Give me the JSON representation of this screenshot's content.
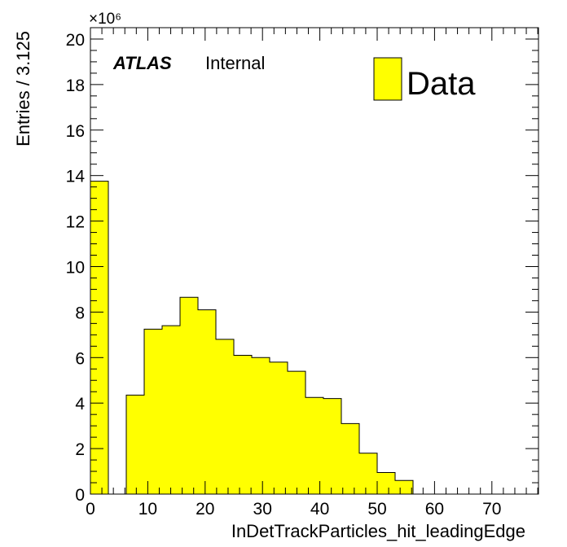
{
  "chart_data": {
    "type": "bar",
    "xlabel": "InDetTrackParticles_hit_leadingEdge",
    "ylabel": "Entries / 3.125",
    "y_multiplier": "×10⁶",
    "xlim": [
      0,
      78.125
    ],
    "ylim": [
      0,
      20.5
    ],
    "bin_width": 3.125,
    "x_ticks": [
      0,
      10,
      20,
      30,
      40,
      50,
      60,
      70
    ],
    "y_ticks": [
      0,
      2,
      4,
      6,
      8,
      10,
      12,
      14,
      16,
      18,
      20
    ],
    "bins": [
      {
        "x_low": 0,
        "x_high": 3.125,
        "value": 13.75
      },
      {
        "x_low": 3.125,
        "x_high": 6.25,
        "value": 0
      },
      {
        "x_low": 6.25,
        "x_high": 9.375,
        "value": 4.35
      },
      {
        "x_low": 9.375,
        "x_high": 12.5,
        "value": 7.25
      },
      {
        "x_low": 12.5,
        "x_high": 15.625,
        "value": 7.4
      },
      {
        "x_low": 15.625,
        "x_high": 18.75,
        "value": 8.65
      },
      {
        "x_low": 18.75,
        "x_high": 21.875,
        "value": 8.1
      },
      {
        "x_low": 21.875,
        "x_high": 25.0,
        "value": 6.8
      },
      {
        "x_low": 25.0,
        "x_high": 28.125,
        "value": 6.1
      },
      {
        "x_low": 28.125,
        "x_high": 31.25,
        "value": 6.0
      },
      {
        "x_low": 31.25,
        "x_high": 34.375,
        "value": 5.8
      },
      {
        "x_low": 34.375,
        "x_high": 37.5,
        "value": 5.4
      },
      {
        "x_low": 37.5,
        "x_high": 40.625,
        "value": 4.25
      },
      {
        "x_low": 40.625,
        "x_high": 43.75,
        "value": 4.2
      },
      {
        "x_low": 43.75,
        "x_high": 46.875,
        "value": 3.1
      },
      {
        "x_low": 46.875,
        "x_high": 50.0,
        "value": 1.8
      },
      {
        "x_low": 50.0,
        "x_high": 53.125,
        "value": 0.95
      },
      {
        "x_low": 53.125,
        "x_high": 56.25,
        "value": 0.6
      }
    ],
    "series": [
      {
        "name": "Data",
        "color": "#ffff00"
      }
    ],
    "legend": {
      "placement": "top-right",
      "entries": [
        "Data"
      ]
    },
    "grid": false
  },
  "labels": {
    "atlas": "ATLAS",
    "internal": "Internal",
    "legend_data": "Data"
  },
  "colors": {
    "fill": "#ffff00",
    "line": "#000000"
  }
}
